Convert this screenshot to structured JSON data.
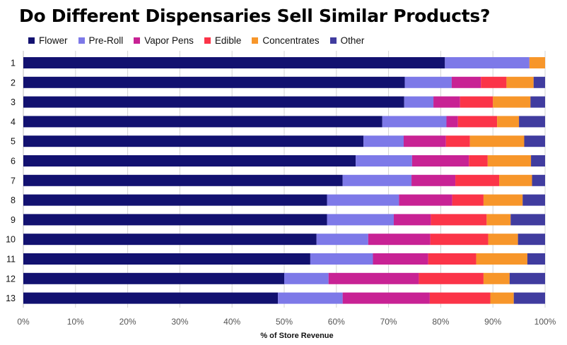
{
  "chart_data": {
    "type": "bar",
    "orientation": "horizontal",
    "stacked": true,
    "title": "Do Different Dispensaries Sell Similar Products?",
    "xlabel": "% of Store Revenue",
    "ylabel": "",
    "xlim": [
      0,
      100
    ],
    "x_ticks": [
      "0%",
      "10%",
      "20%",
      "30%",
      "40%",
      "50%",
      "60%",
      "70%",
      "80%",
      "90%",
      "100%"
    ],
    "grid": "vertical",
    "legend_position": "top-left",
    "categories": [
      "1",
      "2",
      "3",
      "4",
      "5",
      "6",
      "7",
      "8",
      "9",
      "10",
      "11",
      "12",
      "13"
    ],
    "series": [
      {
        "name": "Flower",
        "color": "#121170",
        "values": [
          80.8,
          73.1,
          73.0,
          68.8,
          65.2,
          63.7,
          61.2,
          58.2,
          58.2,
          56.2,
          55.0,
          50.0,
          48.8
        ]
      },
      {
        "name": "Pre-Roll",
        "color": "#7d79e8",
        "values": [
          16.2,
          9.0,
          5.6,
          12.3,
          7.7,
          10.8,
          13.2,
          13.8,
          12.8,
          9.9,
          12.0,
          8.5,
          12.4
        ]
      },
      {
        "name": "Vapor Pens",
        "color": "#c82294",
        "values": [
          0.0,
          5.6,
          5.1,
          2.2,
          8.1,
          10.9,
          8.4,
          10.2,
          7.1,
          11.9,
          10.6,
          17.3,
          16.7
        ]
      },
      {
        "name": "Edible",
        "color": "#fb3448",
        "values": [
          0.0,
          4.9,
          6.3,
          7.5,
          4.6,
          3.6,
          8.4,
          6.0,
          10.7,
          11.1,
          9.2,
          12.4,
          11.6
        ]
      },
      {
        "name": "Concentrates",
        "color": "#f7962a",
        "values": [
          3.0,
          5.2,
          7.2,
          4.2,
          10.4,
          8.3,
          6.3,
          7.5,
          4.6,
          5.7,
          9.8,
          5.0,
          4.5
        ]
      },
      {
        "name": "Other",
        "color": "#403c9f",
        "values": [
          0.0,
          2.2,
          2.8,
          5.0,
          4.0,
          2.7,
          2.5,
          4.3,
          6.6,
          5.2,
          3.4,
          6.8,
          6.0
        ]
      }
    ]
  }
}
